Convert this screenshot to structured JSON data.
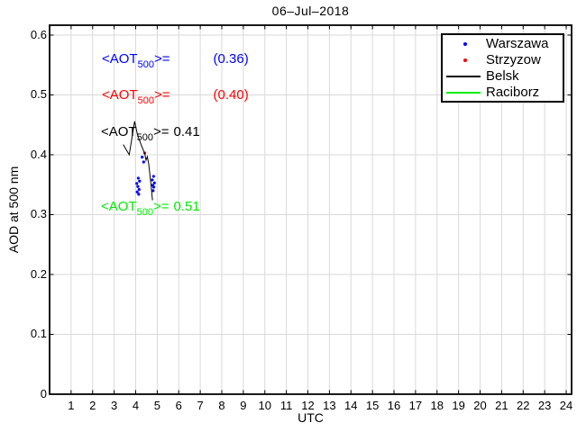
{
  "title": "06–Jul–2018",
  "xlabel": "UTC",
  "ylabel": "AOD at 500 nm",
  "annotations": [
    {
      "color": "#0000ff",
      "prefix": "<AOT",
      "sub": "500",
      "suffix": ">=",
      "value": "(0.36)"
    },
    {
      "color": "#ff0000",
      "prefix": "<AOT",
      "sub": "500",
      "suffix": ">=",
      "value": "(0.40)"
    },
    {
      "color": "#000000",
      "prefix": "<AOT",
      "sub": "500",
      "suffix": ">=",
      "value": "0.41"
    },
    {
      "color": "#00ee00",
      "prefix": "<AOT",
      "sub": "500",
      "suffix": ">=",
      "value": "0.51"
    }
  ],
  "legend": {
    "position": "top-right",
    "items": [
      {
        "label": "Warszawa",
        "marker": "dot",
        "color": "#0000ff"
      },
      {
        "label": "Strzyzow",
        "marker": "dot",
        "color": "#ff0000"
      },
      {
        "label": "Belsk",
        "marker": "line",
        "color": "#000000"
      },
      {
        "label": "Raciborz",
        "marker": "line",
        "color": "#00ee00"
      }
    ]
  },
  "chart_data": {
    "type": "scatter",
    "title": "06–Jul–2018",
    "xlabel": "UTC",
    "ylabel": "AOD at 500 nm",
    "xlim": [
      0,
      24.25
    ],
    "ylim": [
      0,
      0.6165
    ],
    "xticks": [
      1,
      2,
      3,
      4,
      5,
      6,
      7,
      8,
      9,
      10,
      11,
      12,
      13,
      14,
      15,
      16,
      17,
      18,
      19,
      20,
      21,
      22,
      23,
      24
    ],
    "yticks": [
      0,
      0.1,
      0.2,
      0.3,
      0.4,
      0.5,
      0.6
    ],
    "grid": true,
    "grid_color": "#d9d9d9",
    "legend_position": "top-right",
    "series": [
      {
        "name": "Warszawa",
        "type": "scatter",
        "color": "#0000ff",
        "mean_aot_500": 0.36,
        "points": [
          [
            4.3,
            0.396
          ],
          [
            4.37,
            0.388
          ],
          [
            4.05,
            0.352
          ],
          [
            4.12,
            0.361
          ],
          [
            4.18,
            0.356
          ],
          [
            4.1,
            0.347
          ],
          [
            4.16,
            0.342
          ],
          [
            4.07,
            0.338
          ],
          [
            4.14,
            0.334
          ],
          [
            4.83,
            0.364
          ],
          [
            4.77,
            0.358
          ],
          [
            4.87,
            0.353
          ],
          [
            4.79,
            0.349
          ],
          [
            4.84,
            0.346
          ],
          [
            4.81,
            0.34
          ]
        ]
      },
      {
        "name": "Strzyzow",
        "type": "scatter",
        "color": "#ff0000",
        "mean_aot_500": 0.4,
        "points": [
          [
            4.42,
            0.403
          ]
        ]
      },
      {
        "name": "Belsk",
        "type": "line",
        "color": "#000000",
        "mean_aot_500": 0.41,
        "points": [
          [
            3.42,
            0.417
          ],
          [
            3.7,
            0.4
          ],
          [
            3.95,
            0.456
          ],
          [
            4.08,
            0.434
          ],
          [
            4.25,
            0.417
          ],
          [
            4.42,
            0.402
          ],
          [
            4.48,
            0.391
          ],
          [
            4.54,
            0.397
          ],
          [
            4.6,
            0.386
          ],
          [
            4.66,
            0.367
          ],
          [
            4.72,
            0.347
          ],
          [
            4.78,
            0.324
          ]
        ]
      },
      {
        "name": "Raciborz",
        "type": "line",
        "color": "#00ee00",
        "mean_aot_500": 0.51,
        "points": []
      }
    ]
  }
}
